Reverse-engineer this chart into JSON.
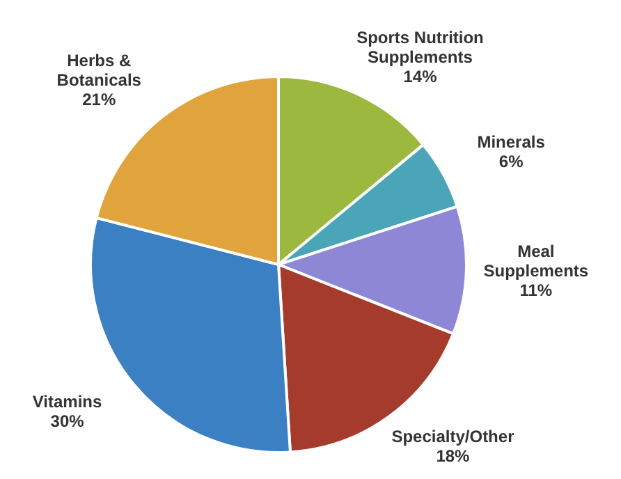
{
  "chart_data": {
    "type": "pie",
    "categories": [
      "Sports Nutrition\nSupplements",
      "Minerals",
      "Meal\nSupplements",
      "Specialty/Other",
      "Vitamins",
      "Herbs &\nBotanicals"
    ],
    "values": [
      14,
      6,
      11,
      18,
      30,
      21
    ],
    "value_labels": [
      "14%",
      "6%",
      "11%",
      "18%",
      "30%",
      "21%"
    ],
    "colors": [
      "#9db83e",
      "#4ba5b8",
      "#8d87d6",
      "#a53b2d",
      "#3b80c3",
      "#e1a33c"
    ]
  }
}
